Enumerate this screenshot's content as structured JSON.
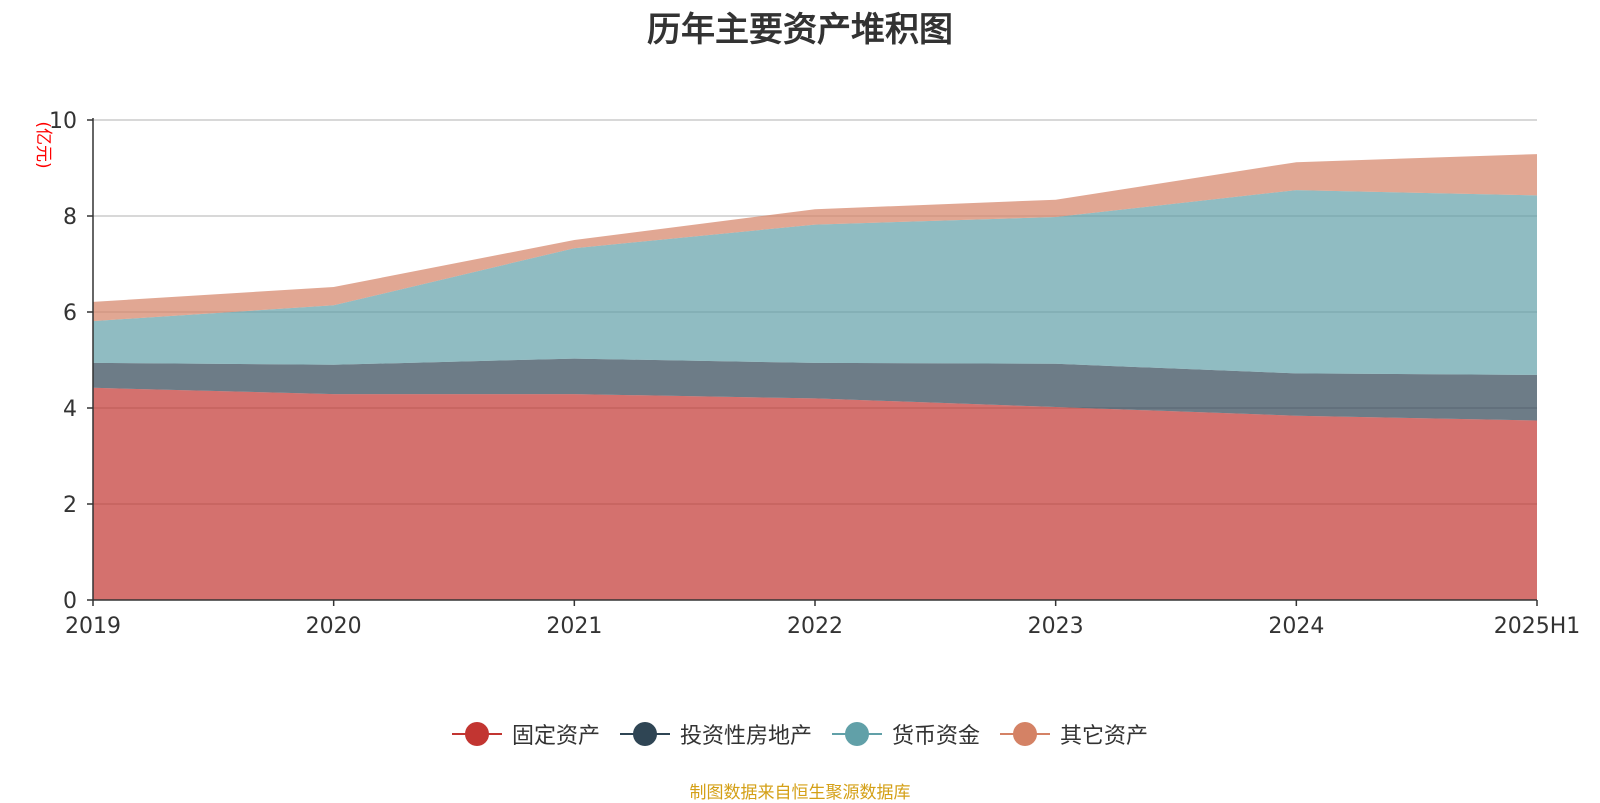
{
  "chart_data": {
    "type": "area",
    "stacked": true,
    "title": "历年主要资产堆积图",
    "ylabel": "亿元",
    "xlabel": "",
    "categories": [
      "2019",
      "2020",
      "2021",
      "2022",
      "2023",
      "2024",
      "2025H1"
    ],
    "ylim": [
      0,
      10
    ],
    "yticks": [
      0,
      2,
      4,
      6,
      8,
      10
    ],
    "grid": true,
    "legend_position": "bottom",
    "series": [
      {
        "name": "固定资产",
        "color": "#c23531",
        "values": [
          4.42,
          4.29,
          4.29,
          4.2,
          4.02,
          3.84,
          3.74
        ]
      },
      {
        "name": "投资性房地产",
        "color": "#2f4554",
        "values": [
          0.52,
          0.61,
          0.74,
          0.74,
          0.9,
          0.88,
          0.95
        ]
      },
      {
        "name": "货币资金",
        "color": "#61a0a8",
        "values": [
          0.87,
          1.24,
          2.3,
          2.88,
          3.06,
          3.82,
          3.74
        ]
      },
      {
        "name": "其它资产",
        "color": "#d48265",
        "values": [
          0.4,
          0.38,
          0.17,
          0.32,
          0.36,
          0.58,
          0.86
        ]
      }
    ]
  },
  "source_note": "制图数据来自恒生聚源数据库"
}
